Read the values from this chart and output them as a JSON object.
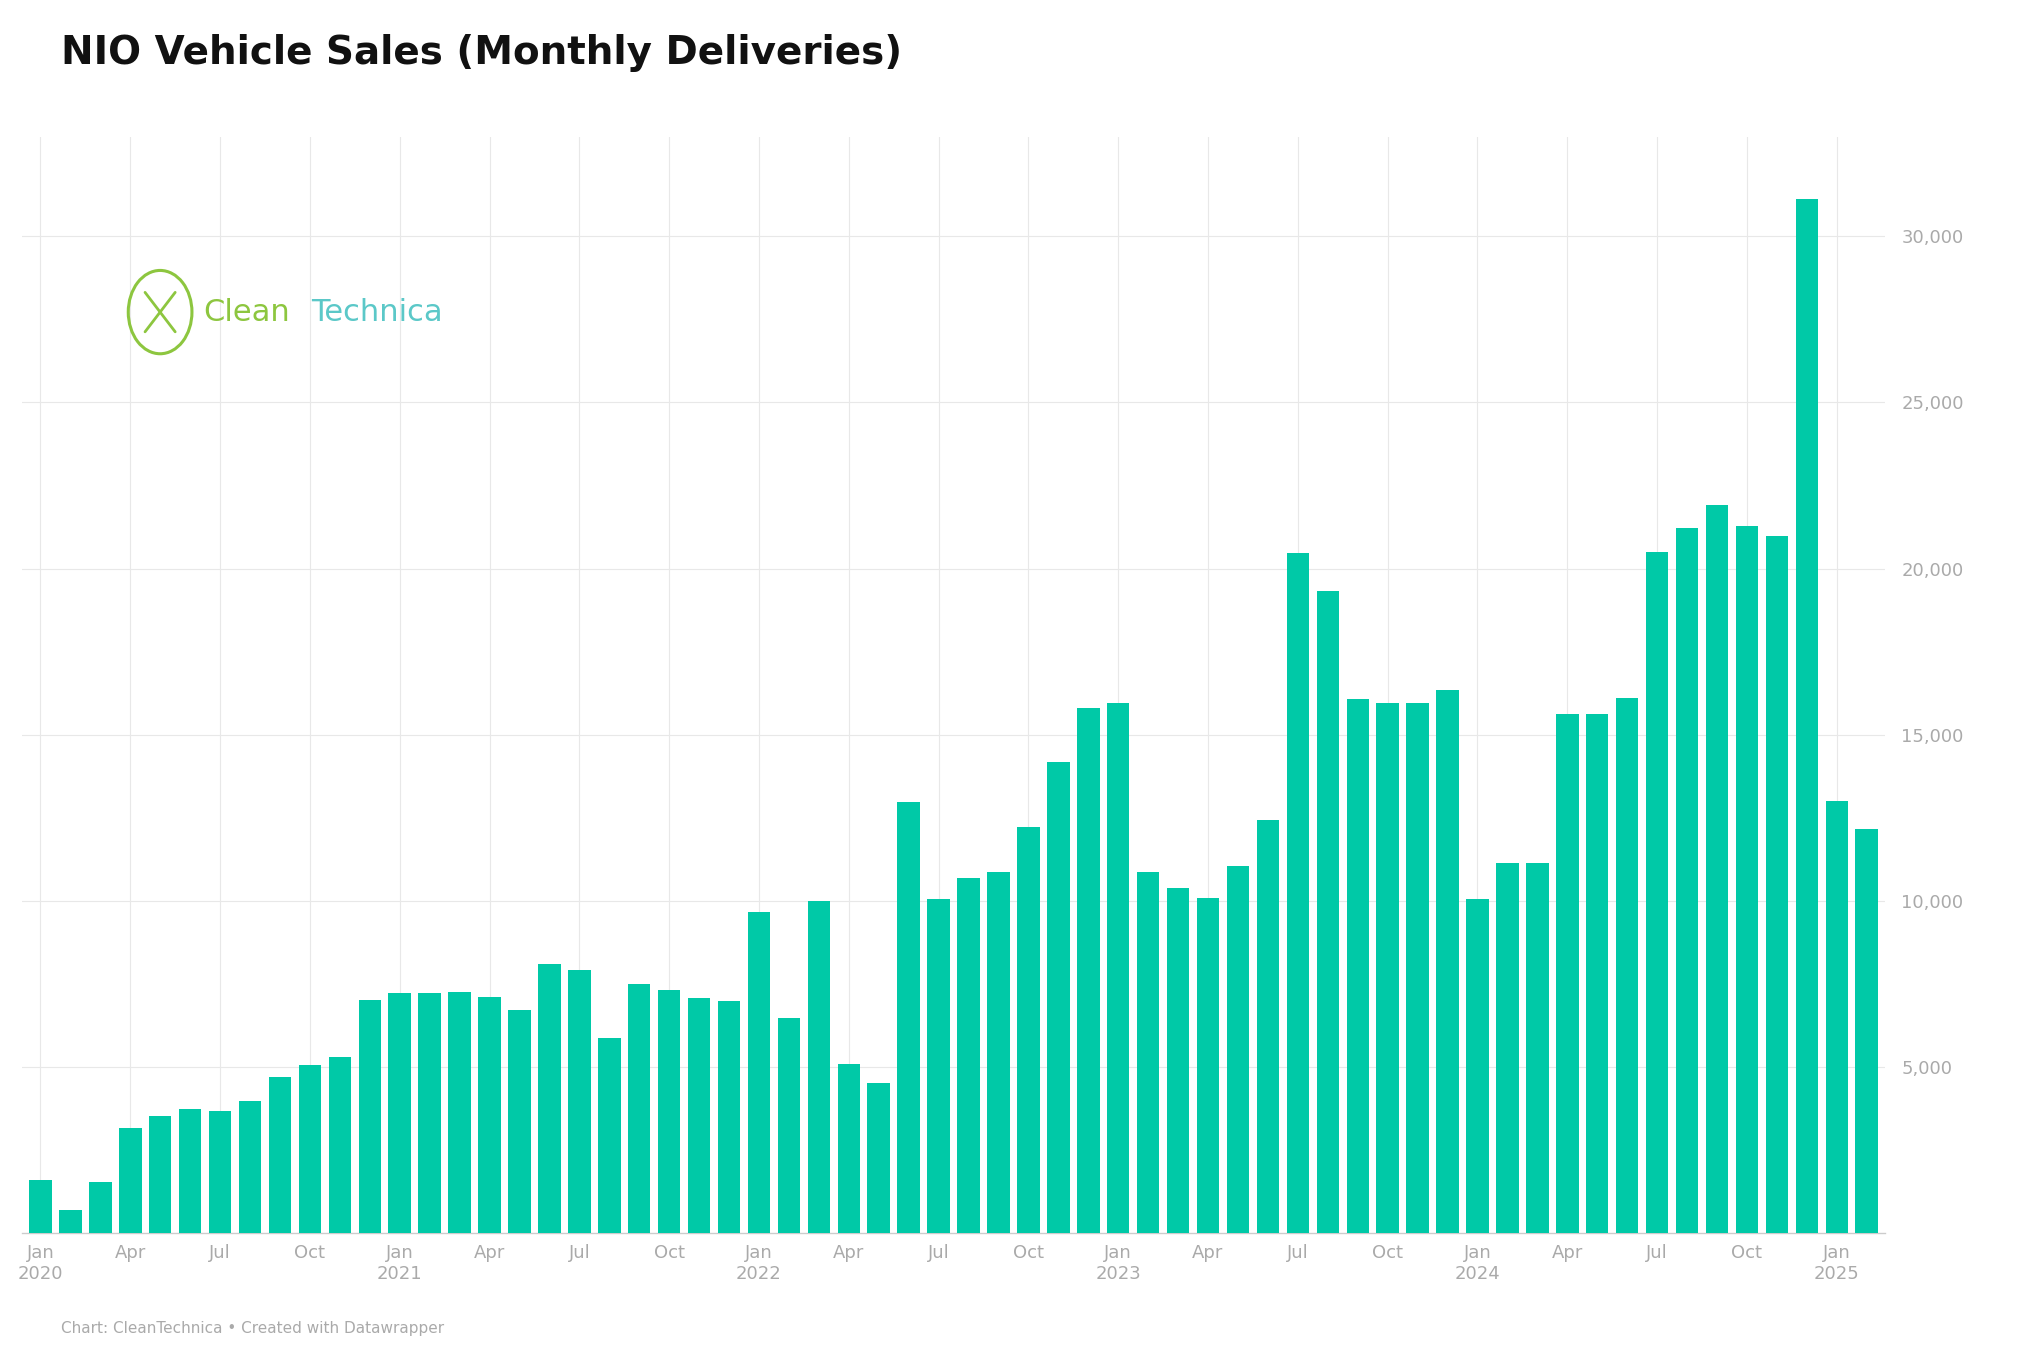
{
  "title": "NIO Vehicle Sales (Monthly Deliveries)",
  "bar_color": "#00C9A7",
  "background_color": "#ffffff",
  "grid_color": "#e8e8e8",
  "tick_color": "#aaaaaa",
  "footer_text": "Chart: CleanTechnica • Created with Datawrapper",
  "ylim": [
    0,
    33000
  ],
  "yticks": [
    5000,
    10000,
    15000,
    20000,
    25000,
    30000
  ],
  "values": [
    1598,
    707,
    1533,
    3155,
    3526,
    3740,
    3669,
    3965,
    4708,
    5055,
    5291,
    7007,
    7225,
    7225,
    7257,
    7102,
    6711,
    8083,
    7931,
    5880,
    7507,
    7326,
    7085,
    6978,
    9652,
    6469,
    9985,
    5074,
    4526,
    12961,
    10052,
    10677,
    10878,
    12228,
    14178,
    15815,
    15959,
    10878,
    10378,
    10070,
    11041,
    12427,
    20462,
    19329,
    16074,
    15959,
    15959,
    16352,
    10055,
    11147,
    11147,
    15620,
    15620,
    16107,
    20498,
    21209,
    21924,
    21268,
    20976,
    31138,
    13012,
    12157
  ],
  "xtick_labels": [
    {
      "label": "Jan\n2020",
      "index": 0
    },
    {
      "label": "Apr",
      "index": 3
    },
    {
      "label": "Jul",
      "index": 6
    },
    {
      "label": "Oct",
      "index": 9
    },
    {
      "label": "Jan\n2021",
      "index": 12
    },
    {
      "label": "Apr",
      "index": 15
    },
    {
      "label": "Jul",
      "index": 18
    },
    {
      "label": "Oct",
      "index": 21
    },
    {
      "label": "Jan\n2022",
      "index": 24
    },
    {
      "label": "Apr",
      "index": 27
    },
    {
      "label": "Jul",
      "index": 30
    },
    {
      "label": "Oct",
      "index": 33
    },
    {
      "label": "Jan\n2023",
      "index": 36
    },
    {
      "label": "Apr",
      "index": 39
    },
    {
      "label": "Jul",
      "index": 42
    },
    {
      "label": "Oct",
      "index": 45
    },
    {
      "label": "Jan\n2024",
      "index": 48
    },
    {
      "label": "Apr",
      "index": 51
    },
    {
      "label": "Jul",
      "index": 54
    },
    {
      "label": "Oct",
      "index": 57
    },
    {
      "label": "Jan\n2025",
      "index": 60
    }
  ],
  "logo_color_green": "#8DC63F",
  "logo_color_teal": "#5BC8C8",
  "logo_icon_color": "#8DC63F"
}
